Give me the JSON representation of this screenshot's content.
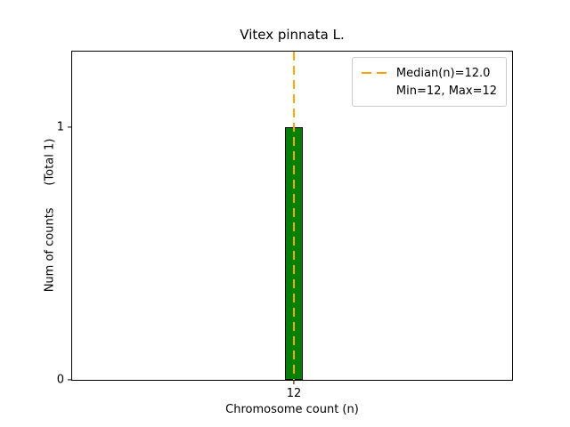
{
  "chart_data": {
    "type": "bar",
    "title": "Vitex pinnata L.",
    "xlabel": "Chromosome count (n)",
    "ylabel": "Num of counts      (Total 1)",
    "categories": [
      "12"
    ],
    "values": [
      1
    ],
    "yticks": [
      0,
      1
    ],
    "ylim": [
      0,
      1.3
    ],
    "grid": false,
    "bar_color": "#008000",
    "bar_edge_color": "#000000",
    "background_color": "#ffffff",
    "median_line": {
      "x": 12,
      "median_value": 12.0,
      "color": "#FFA500",
      "style": "dashed"
    },
    "legend": {
      "position": "upper-right",
      "entries": [
        {
          "symbol": "dashed-line",
          "color": "#FFA500",
          "label": "Median(n)=12.0"
        },
        {
          "symbol": "none",
          "color": "",
          "label": "Min=12, Max=12"
        }
      ]
    }
  }
}
